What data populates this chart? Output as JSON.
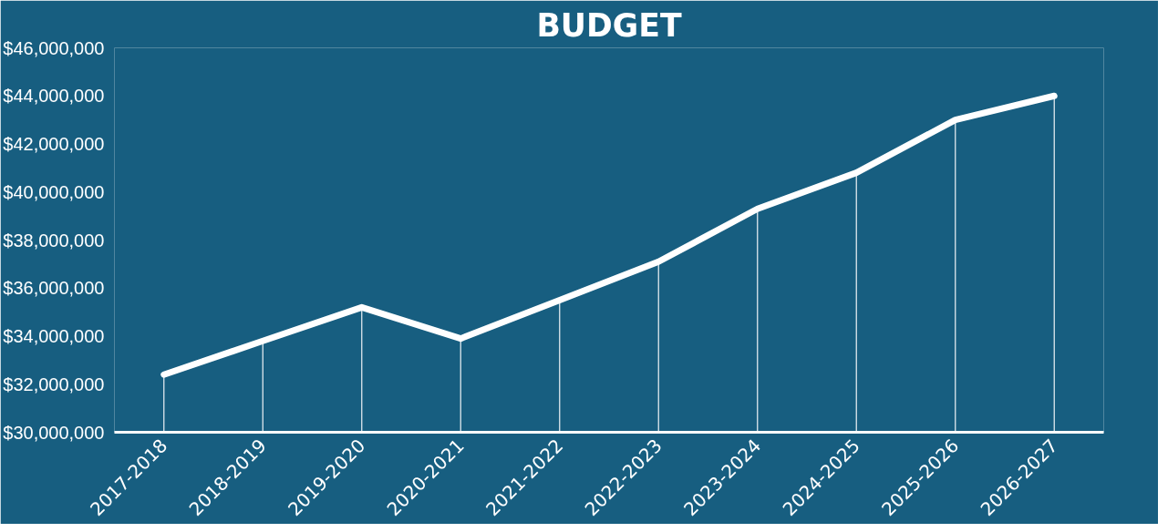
{
  "chart_data": {
    "type": "line",
    "title": "BUDGET",
    "categories": [
      "2017-2018",
      "2018-2019",
      "2019-2020",
      "2020-2021",
      "2021-2022",
      "2022-2023",
      "2023-2024",
      "2024-2025",
      "2025-2026",
      "2026-2027"
    ],
    "series": [
      {
        "type": "bar",
        "color": "#dfe8ee",
        "values": [
          32400000,
          33800000,
          35200000,
          33900000,
          35500000,
          37100000,
          39300000,
          40800000,
          43000000,
          44000000
        ]
      },
      {
        "color": "#ffffff",
        "values": [
          32400000,
          33800000,
          35200000,
          33900000,
          35500000,
          37100000,
          39300000,
          40800000,
          43000000,
          44000000
        ]
      }
    ],
    "ylim": [
      30000000,
      46000000
    ],
    "yticks": [
      {
        "value": 30000000,
        "label": "$30,000,000"
      },
      {
        "value": 32000000,
        "label": "$32,000,000"
      },
      {
        "value": 34000000,
        "label": "$34,000,000"
      },
      {
        "value": 36000000,
        "label": "$36,000,000"
      },
      {
        "value": 38000000,
        "label": "$38,000,000"
      },
      {
        "value": 40000000,
        "label": "$40,000,000"
      },
      {
        "value": 42000000,
        "label": "$42,000,000"
      },
      {
        "value": 44000000,
        "label": "$44,000,000"
      },
      {
        "value": 46000000,
        "label": "$46,000,000"
      }
    ],
    "grid": false,
    "marker": "none",
    "line_style": "solid"
  }
}
